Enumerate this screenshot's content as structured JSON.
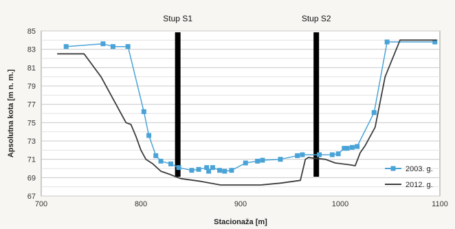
{
  "chart_data": {
    "type": "line",
    "title": "",
    "xlabel": "Stacionaža [m]",
    "ylabel": "Apsolutna kota [m n. m.]",
    "xlim": [
      700,
      1100
    ],
    "ylim": [
      67,
      85
    ],
    "xticks": [
      700,
      800,
      900,
      1000,
      1100
    ],
    "yticks": [
      67,
      69,
      71,
      73,
      75,
      77,
      79,
      81,
      83,
      85
    ],
    "grid": true,
    "legend_position": "bottom-right",
    "annotations": [
      {
        "label": "Stup S1",
        "x": 837
      },
      {
        "label": "Stup S2",
        "x": 976
      }
    ],
    "series": [
      {
        "name": "2003. g.",
        "color": "#4aa3d6",
        "marker": "square",
        "x": [
          725,
          762,
          772,
          787,
          803,
          808,
          815,
          820,
          830,
          838,
          851,
          858,
          866,
          868,
          872,
          879,
          884,
          891,
          905,
          917,
          922,
          940,
          957,
          962,
          979,
          992,
          998,
          1004,
          1007,
          1012,
          1017,
          1034,
          1047,
          1095
        ],
        "y": [
          83.3,
          83.6,
          83.3,
          83.3,
          76.2,
          73.6,
          71.4,
          70.8,
          70.5,
          70.1,
          69.8,
          69.9,
          70.1,
          69.7,
          70.1,
          69.8,
          69.7,
          69.8,
          70.6,
          70.8,
          70.9,
          71.0,
          71.4,
          71.5,
          71.5,
          71.5,
          71.6,
          72.2,
          72.2,
          72.3,
          72.4,
          76.1,
          83.8,
          83.8
        ]
      },
      {
        "name": "2012. g.",
        "color": "#3a3a3a",
        "marker": "none",
        "x": [
          716,
          743,
          760,
          775,
          785,
          790,
          795,
          800,
          805,
          812,
          820,
          828,
          835,
          840,
          860,
          880,
          900,
          920,
          940,
          960,
          965,
          968,
          975,
          985,
          995,
          1010,
          1015,
          1020,
          1025,
          1035,
          1045,
          1060,
          1097
        ],
        "y": [
          82.5,
          82.5,
          80.0,
          77.0,
          75.0,
          74.8,
          73.5,
          72.0,
          71.0,
          70.5,
          69.7,
          69.4,
          69.1,
          68.9,
          68.6,
          68.2,
          68.2,
          68.2,
          68.4,
          68.7,
          71.0,
          71.2,
          71.1,
          71.0,
          70.6,
          70.4,
          70.3,
          71.7,
          72.5,
          74.5,
          80.0,
          84.0,
          84.0
        ]
      }
    ]
  }
}
